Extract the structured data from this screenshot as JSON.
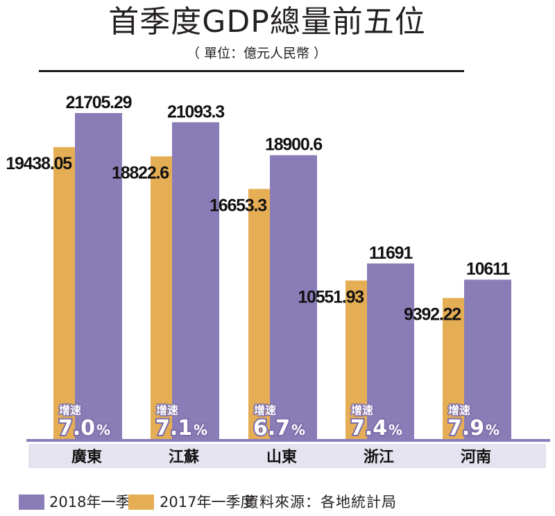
{
  "colors": {
    "series_2018": "#8a7db7",
    "series_2017": "#e5ae55",
    "baseline": "#8a7db7",
    "category_band": "#e4e3ef"
  },
  "chart_data": {
    "type": "bar",
    "title": "首季度GDP總量前五位",
    "subtitle": "（ 單位：億元人民幣 ）",
    "categories": [
      "廣東",
      "江蘇",
      "山東",
      "浙江",
      "河南"
    ],
    "series": [
      {
        "name": "2017年一季度",
        "values": [
          19438.05,
          18822.6,
          16653.3,
          10551.93,
          9392.22
        ],
        "labels": [
          "19438.05",
          "18822.6",
          "16653.3",
          "10551.93",
          "9392.22"
        ]
      },
      {
        "name": "2018年一季度",
        "values": [
          21705.29,
          21093.3,
          18900.6,
          11691,
          10611
        ],
        "labels": [
          "21705.29",
          "21093.3",
          "18900.6",
          "11691",
          "10611"
        ]
      }
    ],
    "growth_label": "增速",
    "growth": [
      {
        "num": "7.0",
        "unit": "%"
      },
      {
        "num": "7.1",
        "unit": "%"
      },
      {
        "num": "6.7",
        "unit": "%"
      },
      {
        "num": "7.4",
        "unit": "%"
      },
      {
        "num": "7.9",
        "unit": "%"
      }
    ],
    "xlabel": "",
    "ylabel": "",
    "ylim": [
      0,
      21705.29
    ],
    "grid": false,
    "legend_position": "bottom"
  },
  "legend": {
    "items": [
      {
        "label": "2018年一季度"
      },
      {
        "label": "2017年一季度"
      }
    ],
    "source": "資料來源：各地統計局"
  }
}
